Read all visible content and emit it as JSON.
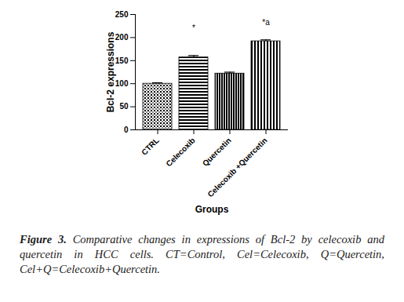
{
  "chart_data": {
    "type": "bar",
    "categories": [
      "CTRL",
      "Celecoxib",
      "Quercetin",
      "Celecoxib +Quercetin"
    ],
    "values": [
      100,
      157,
      122,
      192
    ],
    "errors": [
      2,
      4,
      3,
      3
    ],
    "colors": [
      "#000000",
      "#000000",
      "#000000",
      "#000000"
    ],
    "x_label": "Groups",
    "y_label": "Bcl-2 expressions",
    "ylim": [
      0,
      250
    ],
    "yticks": [
      0,
      50,
      100,
      150,
      200,
      250
    ],
    "grid": false,
    "annotations": [
      {
        "category": "Celecoxib",
        "text": "*",
        "y": 220
      },
      {
        "category": "Celecoxib +Quercetin",
        "text": "*a",
        "y": 233
      }
    ],
    "caption_label": "Figure 3.",
    "caption": "Comparative changes in expressions of Bcl-2 by celecoxib and quercetin in HCC cells. CT=Control, Cel=Celecoxib, Q=Quercetin, Cel+Q=Celecoxib+Quercetin."
  }
}
